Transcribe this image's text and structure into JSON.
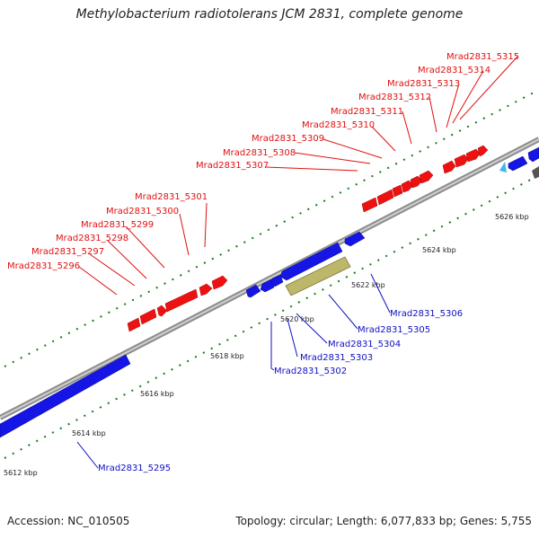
{
  "title": "Methylobacterium radiotolerans JCM 2831, complete genome",
  "footer": {
    "accession": "Accession: NC_010505",
    "topology": "Topology: circular; Length: 6,077,833 bp; Genes: 5,755"
  },
  "colors": {
    "forward": "#ee1111",
    "reverse": "#1515e6",
    "rna": "#bdb76b",
    "backbone": "#8c8c8c",
    "tick": "#1a7a1a"
  },
  "kbp_ticks": [
    "5612 kbp",
    "5614 kbp",
    "5616 kbp",
    "5618 kbp",
    "5620 kbp",
    "5622 kbp",
    "5624 kbp",
    "5626 kbp"
  ],
  "labels_forward": [
    "Mrad2831_5296",
    "Mrad2831_5297",
    "Mrad2831_5298",
    "Mrad2831_5299",
    "Mrad2831_5300",
    "Mrad2831_5301",
    "Mrad2831_5307",
    "Mrad2831_5308",
    "Mrad2831_5309",
    "Mrad2831_5310",
    "Mrad2831_5311",
    "Mrad2831_5312",
    "Mrad2831_5313",
    "Mrad2831_5314",
    "Mrad2831_5315"
  ],
  "labels_reverse": [
    "Mrad2831_5295",
    "Mrad2831_5302",
    "Mrad2831_5303",
    "Mrad2831_5304",
    "Mrad2831_5305",
    "Mrad2831_5306"
  ]
}
